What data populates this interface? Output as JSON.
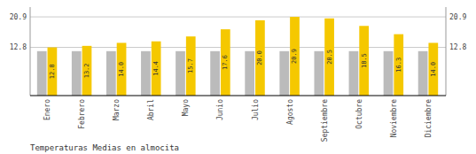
{
  "chart_data": {
    "type": "bar",
    "title": "Temperaturas Medias en almocita",
    "categories": [
      "Enero",
      "Febrero",
      "Marzo",
      "Abril",
      "Mayo",
      "Junio",
      "Julio",
      "Agosto",
      "Septiembre",
      "Octubre",
      "Noviembre",
      "Diciembre"
    ],
    "series": [
      {
        "color": "#BBBBBB",
        "values": [
          11.8,
          11.8,
          11.8,
          11.8,
          11.8,
          11.8,
          11.8,
          11.8,
          11.8,
          11.8,
          11.8,
          11.8
        ]
      },
      {
        "color": "#F5C800",
        "values": [
          12.8,
          13.2,
          14.0,
          14.4,
          15.7,
          17.6,
          20.0,
          20.9,
          20.5,
          18.5,
          16.3,
          14.0
        ],
        "value_labels": [
          "12.8",
          "13.2",
          "14.0",
          "14.4",
          "15.7",
          "17.6",
          "20.0",
          "20.9",
          "20.5",
          "18.5",
          "16.3",
          "14.0"
        ],
        "data_labels": true
      }
    ],
    "ylim": [
      0,
      23.5
    ],
    "yticks": [
      12.8,
      20.9
    ],
    "y2lim": [
      0,
      23.5
    ],
    "y2ticks": [
      12.8,
      20.9
    ],
    "grid": true
  }
}
